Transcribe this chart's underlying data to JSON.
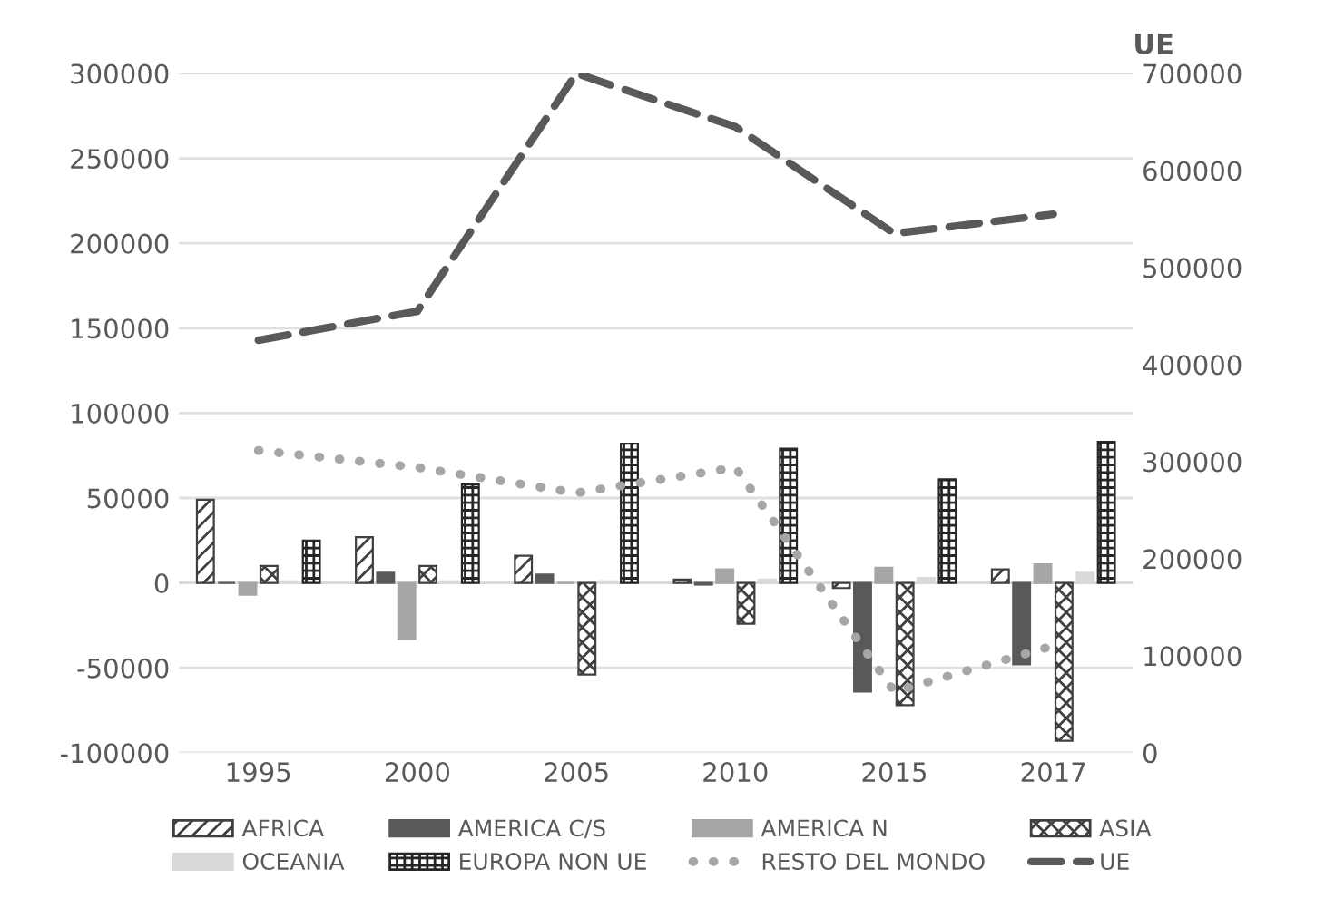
{
  "chart_data": {
    "type": "bar",
    "categories": [
      "1995",
      "2000",
      "2005",
      "2010",
      "2015",
      "2017"
    ],
    "y2label": "UE",
    "series": [
      {
        "name": "AFRICA",
        "color": "#404040",
        "values": [
          49000,
          27000,
          16000,
          2000,
          -3000,
          8000
        ]
      },
      {
        "name": "AMERICA C/S",
        "color": "#595959",
        "values": [
          0,
          6000,
          5000,
          -1000,
          -64000,
          -48000
        ]
      },
      {
        "name": "AMERICA N",
        "color": "#a6a6a6",
        "values": [
          -7000,
          -33000,
          0,
          8000,
          9000,
          11000
        ]
      },
      {
        "name": "ASIA",
        "color": "#404040",
        "values": [
          10000,
          10000,
          -54000,
          -24000,
          -72000,
          -93000
        ]
      },
      {
        "name": "OCEANIA",
        "color": "#d9d9d9",
        "values": [
          1000,
          1000,
          1000,
          2000,
          3000,
          6000
        ]
      },
      {
        "name": "EUROPA NON UE",
        "color": "#262626",
        "values": [
          25000,
          58000,
          82000,
          79000,
          61000,
          83000
        ]
      },
      {
        "name": "RESTO DEL MONDO",
        "type": "line",
        "line_style": "dotted",
        "color": "#a6a6a6",
        "values": [
          78000,
          68000,
          53000,
          68000,
          -64000,
          -37000
        ]
      },
      {
        "name": "UE",
        "type": "line",
        "axis": "y2",
        "line_style": "dashed",
        "color": "#595959",
        "values": [
          425000,
          455000,
          700000,
          645000,
          535000,
          555000
        ]
      }
    ],
    "ylim": [
      -100000,
      300000
    ],
    "yticks": [
      -100000,
      -50000,
      0,
      50000,
      100000,
      150000,
      200000,
      250000,
      300000
    ],
    "y2lim": [
      0,
      700000
    ],
    "y2ticks": [
      0,
      100000,
      200000,
      300000,
      400000,
      500000,
      600000,
      700000
    ],
    "grid": "y",
    "legend": "bottom",
    "marker": "none"
  }
}
